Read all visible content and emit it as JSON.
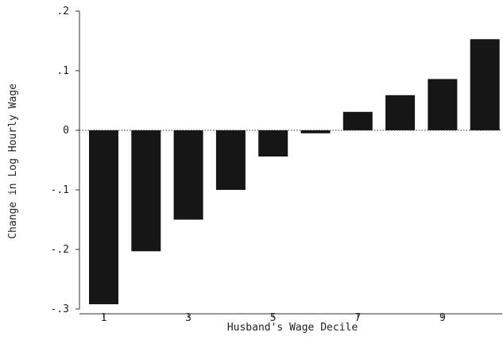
{
  "chart_data": {
    "type": "bar",
    "title": "",
    "xlabel": "Husband's Wage Decile",
    "ylabel": "Change in Log Hourly Wage",
    "categories": [
      1,
      2,
      3,
      4,
      5,
      6,
      7,
      8,
      9,
      10
    ],
    "x_tick_labels": [
      "1",
      "3",
      "5",
      "7",
      "9"
    ],
    "x_tick_positions": [
      1,
      3,
      5,
      7,
      9
    ],
    "values": [
      -0.292,
      -0.203,
      -0.15,
      -0.1,
      -0.044,
      -0.005,
      0.031,
      0.059,
      0.086,
      0.153
    ],
    "ylim": [
      -0.3,
      0.2
    ],
    "y_ticks": [
      -0.3,
      -0.2,
      -0.1,
      0,
      0.1,
      0.2
    ],
    "y_tick_labels": [
      "-.3",
      "-.2",
      "-.1",
      "0",
      ".1",
      ".2"
    ],
    "bar_color": "#161616",
    "zero_line": true,
    "grid": false,
    "legend": "none"
  }
}
